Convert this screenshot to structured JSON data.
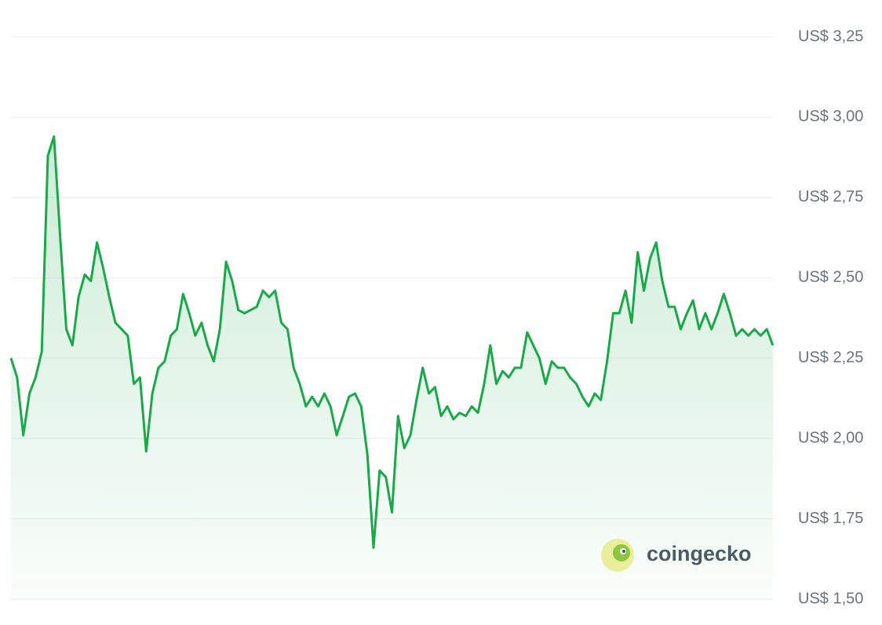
{
  "chart_data": {
    "type": "line",
    "color": "#19a949",
    "grid": true,
    "watermark": "coingecko",
    "ylim": [
      1.5,
      3.25
    ],
    "yticks": [
      {
        "value": 1.5,
        "label": "US$ 1,50"
      },
      {
        "value": 1.75,
        "label": "US$ 1,75"
      },
      {
        "value": 2.0,
        "label": "US$ 2,00"
      },
      {
        "value": 2.25,
        "label": "US$ 2,25"
      },
      {
        "value": 2.5,
        "label": "US$ 2,50"
      },
      {
        "value": 2.75,
        "label": "US$ 2,75"
      },
      {
        "value": 3.0,
        "label": "US$ 3,00"
      },
      {
        "value": 3.25,
        "label": "US$ 3,25"
      }
    ],
    "categories": [
      null,
      null,
      null,
      null,
      null,
      null,
      null,
      null,
      null,
      null,
      null,
      null,
      null,
      null,
      null,
      null,
      null,
      null,
      null,
      null,
      null,
      null,
      null,
      null,
      null,
      null,
      null,
      null,
      null,
      null,
      null,
      null,
      null,
      null,
      null,
      null,
      null,
      null,
      null,
      null,
      null,
      null,
      null,
      null,
      null,
      null,
      null,
      null,
      null,
      null,
      null,
      null,
      null,
      null,
      null,
      null,
      null,
      null,
      null,
      null,
      null,
      null,
      null,
      null,
      null,
      null,
      null,
      null,
      null,
      null,
      null,
      null,
      null,
      null,
      null,
      null,
      null,
      null,
      null,
      null,
      null,
      null,
      null,
      null,
      null,
      null,
      null,
      null,
      null,
      null,
      null,
      null,
      null,
      null,
      null,
      null,
      null,
      null,
      null,
      null,
      null,
      null,
      null,
      null,
      null,
      null,
      null,
      null,
      null,
      null,
      null,
      null,
      null,
      null,
      null,
      null,
      null,
      null,
      null,
      null,
      null,
      null,
      null,
      null,
      null
    ],
    "values": [
      2.25,
      2.19,
      2.01,
      2.14,
      2.19,
      2.27,
      2.88,
      2.94,
      2.63,
      2.34,
      2.29,
      2.44,
      2.51,
      2.49,
      2.61,
      2.53,
      2.44,
      2.36,
      2.34,
      2.32,
      2.17,
      2.19,
      1.96,
      2.14,
      2.22,
      2.24,
      2.32,
      2.34,
      2.45,
      2.39,
      2.32,
      2.36,
      2.29,
      2.24,
      2.34,
      2.55,
      2.49,
      2.4,
      2.39,
      2.4,
      2.41,
      2.46,
      2.44,
      2.46,
      2.36,
      2.34,
      2.22,
      2.17,
      2.1,
      2.13,
      2.1,
      2.14,
      2.1,
      2.01,
      2.07,
      2.13,
      2.14,
      2.1,
      1.95,
      1.66,
      1.9,
      1.88,
      1.77,
      2.07,
      1.97,
      2.01,
      2.12,
      2.22,
      2.14,
      2.16,
      2.07,
      2.1,
      2.06,
      2.08,
      2.07,
      2.1,
      2.08,
      2.17,
      2.29,
      2.17,
      2.21,
      2.19,
      2.22,
      2.22,
      2.33,
      2.29,
      2.25,
      2.17,
      2.24,
      2.22,
      2.22,
      2.19,
      2.17,
      2.13,
      2.1,
      2.14,
      2.12,
      2.24,
      2.39,
      2.39,
      2.46,
      2.36,
      2.58,
      2.46,
      2.56,
      2.61,
      2.49,
      2.41,
      2.41,
      2.34,
      2.39,
      2.43,
      2.34,
      2.39,
      2.34,
      2.39,
      2.45,
      2.39,
      2.32,
      2.34,
      2.32,
      2.34,
      2.32,
      2.34,
      2.29
    ]
  }
}
